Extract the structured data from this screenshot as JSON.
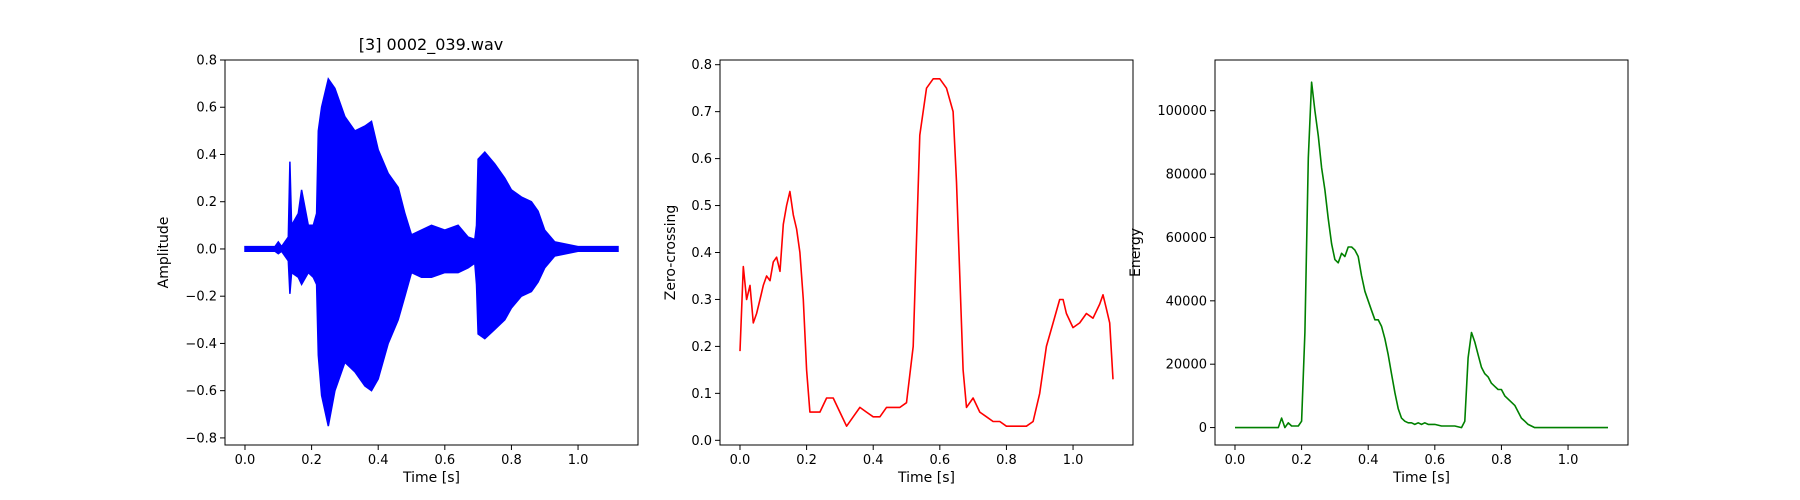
{
  "chart_data": [
    {
      "type": "line",
      "title": "[3] 0002_039.wav",
      "xlabel": "Time [s]",
      "ylabel": "Amplitude",
      "xlim": [
        -0.06,
        1.18
      ],
      "ylim": [
        -0.83,
        0.8
      ],
      "xticks": [
        0.0,
        0.2,
        0.4,
        0.6,
        0.8,
        1.0
      ],
      "xtick_labels": [
        "0.0",
        "0.2",
        "0.4",
        "0.6",
        "0.8",
        "1.0"
      ],
      "yticks": [
        -0.8,
        -0.6,
        -0.4,
        -0.2,
        0.0,
        0.2,
        0.4,
        0.6,
        0.8
      ],
      "ytick_labels": [
        "−0.8",
        "−0.6",
        "−0.4",
        "−0.2",
        "0.0",
        "0.2",
        "0.4",
        "0.6",
        "0.8"
      ],
      "grid": false,
      "color": "#0000ff",
      "series_kind": "envelope",
      "series": [
        {
          "x": [
            0.0,
            0.09,
            0.1,
            0.11,
            0.13,
            0.135,
            0.14,
            0.16,
            0.17,
            0.19,
            0.205,
            0.215,
            0.22,
            0.23,
            0.25,
            0.27,
            0.3,
            0.33,
            0.36,
            0.38,
            0.4,
            0.43,
            0.46,
            0.48,
            0.5,
            0.53,
            0.56,
            0.6,
            0.64,
            0.67,
            0.69,
            0.695,
            0.7,
            0.72,
            0.75,
            0.78,
            0.8,
            0.83,
            0.86,
            0.88,
            0.9,
            0.93,
            1.0,
            1.12
          ],
          "upper": [
            0.01,
            0.01,
            0.03,
            0.01,
            0.05,
            0.37,
            0.1,
            0.15,
            0.25,
            0.1,
            0.1,
            0.15,
            0.5,
            0.6,
            0.72,
            0.68,
            0.56,
            0.5,
            0.52,
            0.54,
            0.42,
            0.32,
            0.26,
            0.15,
            0.06,
            0.08,
            0.1,
            0.08,
            0.1,
            0.05,
            0.04,
            0.1,
            0.38,
            0.41,
            0.36,
            0.3,
            0.25,
            0.22,
            0.2,
            0.16,
            0.08,
            0.03,
            0.01,
            0.01
          ],
          "lower": [
            -0.01,
            -0.01,
            -0.02,
            -0.01,
            -0.05,
            -0.19,
            -0.1,
            -0.12,
            -0.15,
            -0.1,
            -0.12,
            -0.15,
            -0.45,
            -0.62,
            -0.75,
            -0.6,
            -0.48,
            -0.52,
            -0.58,
            -0.6,
            -0.55,
            -0.4,
            -0.3,
            -0.2,
            -0.1,
            -0.12,
            -0.12,
            -0.1,
            -0.1,
            -0.08,
            -0.06,
            -0.15,
            -0.36,
            -0.38,
            -0.34,
            -0.3,
            -0.25,
            -0.2,
            -0.18,
            -0.14,
            -0.08,
            -0.03,
            -0.01,
            -0.01
          ]
        }
      ]
    },
    {
      "type": "line",
      "title": "",
      "xlabel": "Time [s]",
      "ylabel": "Zero-crossing",
      "xlim": [
        -0.06,
        1.18
      ],
      "ylim": [
        -0.01,
        0.81
      ],
      "xticks": [
        0.0,
        0.2,
        0.4,
        0.6,
        0.8,
        1.0
      ],
      "xtick_labels": [
        "0.0",
        "0.2",
        "0.4",
        "0.6",
        "0.8",
        "1.0"
      ],
      "yticks": [
        0.0,
        0.1,
        0.2,
        0.3,
        0.4,
        0.5,
        0.6,
        0.7,
        0.8
      ],
      "ytick_labels": [
        "0.0",
        "0.1",
        "0.2",
        "0.3",
        "0.4",
        "0.5",
        "0.6",
        "0.7",
        "0.8"
      ],
      "grid": false,
      "color": "#ff0000",
      "series": [
        {
          "x": [
            0.0,
            0.01,
            0.02,
            0.03,
            0.04,
            0.05,
            0.06,
            0.07,
            0.08,
            0.09,
            0.1,
            0.11,
            0.12,
            0.13,
            0.14,
            0.15,
            0.16,
            0.17,
            0.18,
            0.19,
            0.2,
            0.21,
            0.22,
            0.24,
            0.26,
            0.28,
            0.3,
            0.32,
            0.34,
            0.36,
            0.38,
            0.4,
            0.42,
            0.44,
            0.46,
            0.48,
            0.5,
            0.52,
            0.54,
            0.56,
            0.58,
            0.6,
            0.62,
            0.64,
            0.65,
            0.66,
            0.67,
            0.68,
            0.7,
            0.72,
            0.74,
            0.76,
            0.78,
            0.8,
            0.82,
            0.84,
            0.86,
            0.88,
            0.9,
            0.92,
            0.94,
            0.96,
            0.97,
            0.98,
            1.0,
            1.02,
            1.04,
            1.06,
            1.08,
            1.09,
            1.1,
            1.11,
            1.12
          ],
          "y": [
            0.19,
            0.37,
            0.3,
            0.33,
            0.25,
            0.27,
            0.3,
            0.33,
            0.35,
            0.34,
            0.38,
            0.39,
            0.36,
            0.46,
            0.5,
            0.53,
            0.48,
            0.45,
            0.4,
            0.3,
            0.15,
            0.06,
            0.06,
            0.06,
            0.09,
            0.09,
            0.06,
            0.03,
            0.05,
            0.07,
            0.06,
            0.05,
            0.05,
            0.07,
            0.07,
            0.07,
            0.08,
            0.2,
            0.65,
            0.75,
            0.77,
            0.77,
            0.75,
            0.7,
            0.55,
            0.35,
            0.15,
            0.07,
            0.09,
            0.06,
            0.05,
            0.04,
            0.04,
            0.03,
            0.03,
            0.03,
            0.03,
            0.04,
            0.1,
            0.2,
            0.25,
            0.3,
            0.3,
            0.27,
            0.24,
            0.25,
            0.27,
            0.26,
            0.29,
            0.31,
            0.28,
            0.25,
            0.13
          ]
        }
      ]
    },
    {
      "type": "line",
      "title": "",
      "xlabel": "Time [s]",
      "ylabel": "Energy",
      "xlim": [
        -0.06,
        1.18
      ],
      "ylim": [
        -5500,
        116000
      ],
      "xticks": [
        0.0,
        0.2,
        0.4,
        0.6,
        0.8,
        1.0
      ],
      "xtick_labels": [
        "0.0",
        "0.2",
        "0.4",
        "0.6",
        "0.8",
        "1.0"
      ],
      "yticks": [
        0,
        20000,
        40000,
        60000,
        80000,
        100000
      ],
      "ytick_labels": [
        "0",
        "20000",
        "40000",
        "60000",
        "80000",
        "100000"
      ],
      "grid": false,
      "color": "#008000",
      "series": [
        {
          "x": [
            0.0,
            0.12,
            0.13,
            0.14,
            0.15,
            0.16,
            0.17,
            0.19,
            0.2,
            0.21,
            0.22,
            0.23,
            0.24,
            0.25,
            0.26,
            0.27,
            0.28,
            0.29,
            0.3,
            0.31,
            0.32,
            0.33,
            0.34,
            0.35,
            0.36,
            0.37,
            0.38,
            0.39,
            0.4,
            0.41,
            0.42,
            0.43,
            0.44,
            0.45,
            0.46,
            0.47,
            0.48,
            0.49,
            0.5,
            0.51,
            0.52,
            0.53,
            0.54,
            0.55,
            0.56,
            0.57,
            0.58,
            0.6,
            0.62,
            0.64,
            0.66,
            0.68,
            0.69,
            0.7,
            0.71,
            0.72,
            0.73,
            0.74,
            0.75,
            0.76,
            0.77,
            0.78,
            0.79,
            0.8,
            0.81,
            0.82,
            0.83,
            0.84,
            0.85,
            0.86,
            0.87,
            0.88,
            0.89,
            0.9,
            0.92,
            1.0,
            1.12
          ],
          "y": [
            0,
            0,
            0,
            3000,
            0,
            1500,
            500,
            500,
            2000,
            30000,
            85000,
            109000,
            100000,
            92000,
            82000,
            75000,
            66000,
            58000,
            53000,
            52000,
            55000,
            54000,
            57000,
            57000,
            56000,
            54000,
            48000,
            43000,
            40000,
            37000,
            34000,
            34000,
            32000,
            28000,
            23000,
            17000,
            11000,
            6000,
            3000,
            2000,
            1500,
            1500,
            1000,
            1500,
            1000,
            1500,
            1000,
            1000,
            500,
            500,
            500,
            0,
            2000,
            22000,
            30000,
            27000,
            23000,
            19000,
            17000,
            16000,
            14000,
            13000,
            12000,
            12000,
            10000,
            9000,
            8000,
            7000,
            5000,
            3000,
            2000,
            1000,
            500,
            0,
            0,
            0,
            0
          ]
        }
      ]
    }
  ]
}
